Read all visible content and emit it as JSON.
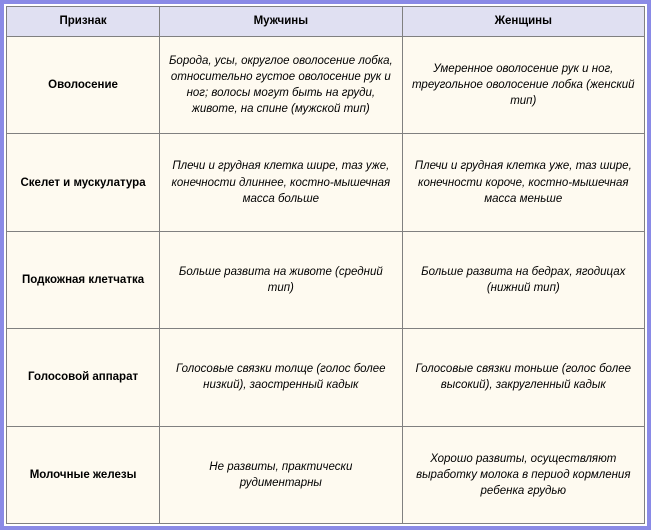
{
  "table": {
    "frame_color": "#8a8ae6",
    "header_bg": "#e0e0f2",
    "body_bg": "#fefaf0",
    "text_color": "#000000",
    "header_fontsize": 12,
    "body_fontsize": 11.5,
    "columns": [
      {
        "key": "feature",
        "label": "Признак"
      },
      {
        "key": "male",
        "label": "Мужчины"
      },
      {
        "key": "female",
        "label": "Женщины"
      }
    ],
    "rows": [
      {
        "feature": "Оволосение",
        "male": "Борода, усы, округлое оволосение лобка, относительно густое оволосение рук и ног; волосы могут быть на груди, животе, на спине (мужской тип)",
        "female": "Умеренное оволосение рук и ног, треугольное оволосение лобка (женский тип)"
      },
      {
        "feature": "Скелет и мускулатура",
        "male": "Плечи и грудная клетка шире, таз уже, конечности длиннее, костно-мышечная масса больше",
        "female": "Плечи и грудная клетка уже, таз шире, конечности короче, костно-мышечная масса меньше"
      },
      {
        "feature": "Подкожная клетчатка",
        "male": "Больше развита на животе (средний тип)",
        "female": "Больше развита на бедрах, ягодицах (нижний тип)"
      },
      {
        "feature": "Голосовой аппарат",
        "male": "Голосовые связки толще (голос более низкий), заостренный кадык",
        "female": "Голосовые связки тоньше (голос более высокий), закругленный кадык"
      },
      {
        "feature": "Молочные железы",
        "male": "Не развиты, практически рудиментарны",
        "female": "Хорошо развиты, осуществляют выработку молока в период кормления ребенка грудью"
      }
    ]
  }
}
